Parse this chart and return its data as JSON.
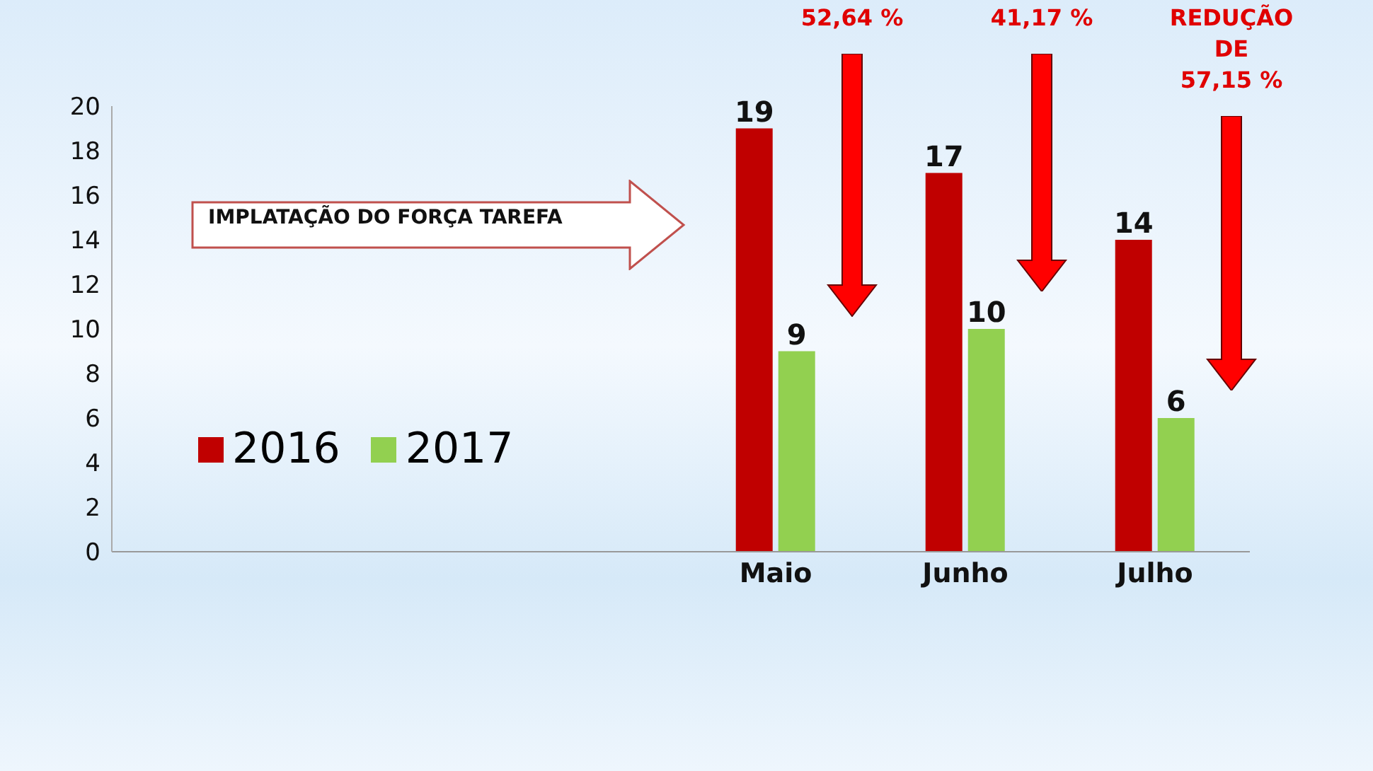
{
  "chart_data": {
    "type": "bar",
    "categories": [
      null,
      null,
      null,
      "Maio",
      "Junho",
      "Julho"
    ],
    "series": [
      {
        "name": "2016",
        "color": "#c00000",
        "values": [
          null,
          null,
          null,
          19,
          17,
          14
        ]
      },
      {
        "name": "2017",
        "color": "#92d050",
        "values": [
          null,
          null,
          null,
          9,
          10,
          6
        ]
      }
    ],
    "ylim": [
      0,
      20
    ],
    "yticks": [
      0,
      2,
      4,
      6,
      8,
      10,
      12,
      14,
      16,
      18,
      20
    ],
    "grid": false,
    "legend": "left",
    "data_labels": true,
    "annotations": [
      "IMPLATAÇÃO DO FORÇA TAREFA",
      "52,64 %",
      "41,17 %",
      "REDUÇÃO\nDE\n57,15 %"
    ]
  }
}
